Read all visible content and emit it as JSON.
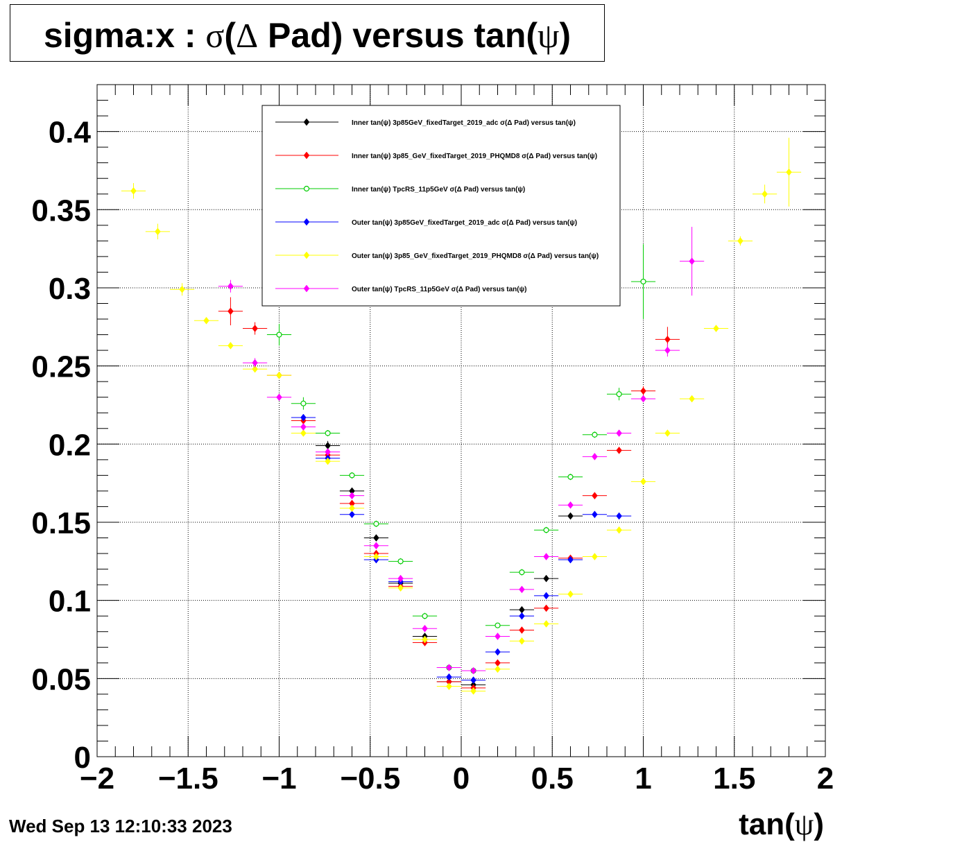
{
  "title": {
    "prefix": "sigma:x : ",
    "sigma": "σ",
    "open": "(",
    "delta": "Δ",
    "mid": " Pad) versus tan(",
    "psi": "ψ",
    "close": ")"
  },
  "datestamp": "Wed Sep 13 12:10:33 2023",
  "chart_data": {
    "type": "scatter",
    "title": "sigma:x : σ(Δ Pad) versus tan(ψ)",
    "xlabel": "tan(ψ)",
    "ylabel": "",
    "xlim": [
      -2,
      2
    ],
    "ylim": [
      0,
      0.43
    ],
    "x_ticks": [
      -2,
      -1.5,
      -1,
      -0.5,
      0,
      0.5,
      1,
      1.5,
      2
    ],
    "x_tick_labels": [
      "−2",
      "−1.5",
      "−1",
      "−0.5",
      "0",
      "0.5",
      "1",
      "1.5",
      "2"
    ],
    "y_ticks": [
      0,
      0.05,
      0.1,
      0.15,
      0.2,
      0.25,
      0.3,
      0.35,
      0.4
    ],
    "y_tick_labels": [
      "0",
      "0.05",
      "0.1",
      "0.15",
      "0.2",
      "0.25",
      "0.3",
      "0.35",
      "0.4"
    ],
    "grid": true,
    "legend_position": "top-center",
    "series": [
      {
        "name": "Inner tan(ψ) 3p85GeV_fixedTarget_2019_adc σ(Δ Pad) versus tan(ψ)",
        "color": "#000000",
        "marker": "filled",
        "xerr": 0.067,
        "x": [
          -0.733,
          -0.6,
          -0.467,
          -0.333,
          -0.2,
          -0.067,
          0.067,
          0.333,
          0.467,
          0.6
        ],
        "y": [
          0.199,
          0.17,
          0.14,
          0.111,
          0.077,
          0.048,
          0.046,
          0.094,
          0.114,
          0.154
        ],
        "yerr": [
          0.003,
          0.002,
          0.002,
          0.002,
          0.002,
          0.001,
          0.001,
          0.002,
          0.002,
          0.002
        ]
      },
      {
        "name": "Inner tan(ψ) 3p85_GeV_fixedTarget_2019_PHQMD8 σ(Δ Pad) versus tan(ψ)",
        "color": "#ff0000",
        "marker": "filled",
        "xerr": 0.067,
        "x": [
          -1.267,
          -1.133,
          -1.0,
          -0.867,
          -0.733,
          -0.6,
          -0.467,
          -0.333,
          -0.2,
          -0.067,
          0.067,
          0.2,
          0.333,
          0.467,
          0.6,
          0.733,
          0.867,
          1.0,
          1.133
        ],
        "y": [
          0.285,
          0.274,
          0.244,
          0.215,
          0.193,
          0.162,
          0.13,
          0.109,
          0.073,
          0.048,
          0.044,
          0.06,
          0.081,
          0.095,
          0.127,
          0.167,
          0.196,
          0.234,
          0.267
        ],
        "yerr": [
          0.009,
          0.004,
          0.002,
          0.002,
          0.002,
          0.002,
          0.002,
          0.002,
          0.002,
          0.001,
          0.001,
          0.001,
          0.001,
          0.002,
          0.002,
          0.002,
          0.002,
          0.003,
          0.008
        ]
      },
      {
        "name": "Inner tan(ψ) TpcRS_11p5GeV σ(Δ Pad) versus tan(ψ)",
        "color": "#00cc00",
        "marker": "open",
        "xerr": 0.067,
        "x": [
          -1.0,
          -0.867,
          -0.733,
          -0.6,
          -0.467,
          -0.333,
          -0.2,
          -0.067,
          0.067,
          0.2,
          0.333,
          0.467,
          0.6,
          0.733,
          0.867,
          1.0
        ],
        "y": [
          0.27,
          0.226,
          0.207,
          0.18,
          0.149,
          0.125,
          0.09,
          0.057,
          0.055,
          0.084,
          0.118,
          0.145,
          0.179,
          0.206,
          0.232,
          0.304
        ],
        "yerr": [
          0.007,
          0.004,
          0.002,
          0.002,
          0.002,
          0.002,
          0.002,
          0.001,
          0.001,
          0.001,
          0.002,
          0.002,
          0.002,
          0.002,
          0.004,
          0.024
        ]
      },
      {
        "name": "Outer tan(ψ) 3p85GeV_fixedTarget_2019_adc σ(Δ Pad) versus tan(ψ)",
        "color": "#0000ff",
        "marker": "filled",
        "xerr": 0.067,
        "x": [
          -0.867,
          -0.733,
          -0.6,
          -0.467,
          -0.333,
          -0.2,
          -0.067,
          0.067,
          0.2,
          0.333,
          0.467,
          0.6,
          0.733,
          0.867
        ],
        "y": [
          0.217,
          0.191,
          0.155,
          0.126,
          0.112,
          0.075,
          0.051,
          0.049,
          0.067,
          0.09,
          0.103,
          0.126,
          0.155,
          0.154
        ],
        "yerr": [
          0.002,
          0.002,
          0.002,
          0.002,
          0.002,
          0.002,
          0.001,
          0.001,
          0.001,
          0.001,
          0.001,
          0.002,
          0.002,
          0.002
        ]
      },
      {
        "name": "Outer tan(ψ) 3p85_GeV_fixedTarget_2019_PHQMD8 σ(Δ Pad) versus tan(ψ)",
        "color": "#ffff00",
        "marker": "filled",
        "xerr": 0.067,
        "x": [
          -1.8,
          -1.667,
          -1.533,
          -1.4,
          -1.267,
          -1.133,
          -1.0,
          -0.867,
          -0.733,
          -0.6,
          -0.467,
          -0.333,
          -0.2,
          -0.067,
          0.067,
          0.2,
          0.333,
          0.467,
          0.6,
          0.733,
          0.867,
          1.0,
          1.133,
          1.267,
          1.4,
          1.533,
          1.667,
          1.8
        ],
        "y": [
          0.362,
          0.336,
          0.299,
          0.279,
          0.263,
          0.248,
          0.244,
          0.207,
          0.189,
          0.159,
          0.128,
          0.108,
          0.075,
          0.045,
          0.042,
          0.056,
          0.074,
          0.085,
          0.104,
          0.128,
          0.145,
          0.176,
          0.207,
          0.229,
          0.274,
          0.33,
          0.36,
          0.374
        ],
        "yerr": [
          0.005,
          0.005,
          0.004,
          0.002,
          0.002,
          0.002,
          0.002,
          0.002,
          0.002,
          0.002,
          0.002,
          0.002,
          0.001,
          0.001,
          0.001,
          0.001,
          0.001,
          0.001,
          0.001,
          0.002,
          0.002,
          0.002,
          0.002,
          0.002,
          0.002,
          0.003,
          0.006,
          0.022
        ]
      },
      {
        "name": "Outer tan(ψ) TpcRS_11p5GeV σ(Δ Pad) versus tan(ψ)",
        "color": "#ff00ff",
        "marker": "filled",
        "xerr": 0.067,
        "x": [
          -1.267,
          -1.133,
          -1.0,
          -0.867,
          -0.733,
          -0.6,
          -0.467,
          -0.333,
          -0.2,
          -0.067,
          0.067,
          0.2,
          0.333,
          0.467,
          0.6,
          0.733,
          0.867,
          1.0,
          1.133,
          1.267
        ],
        "y": [
          0.301,
          0.252,
          0.23,
          0.211,
          0.195,
          0.167,
          0.135,
          0.114,
          0.082,
          0.057,
          0.055,
          0.077,
          0.107,
          0.128,
          0.161,
          0.192,
          0.207,
          0.229,
          0.26,
          0.317
        ],
        "yerr": [
          0.004,
          0.003,
          0.002,
          0.002,
          0.002,
          0.002,
          0.002,
          0.002,
          0.001,
          0.001,
          0.001,
          0.001,
          0.001,
          0.002,
          0.002,
          0.002,
          0.002,
          0.002,
          0.004,
          0.022
        ]
      }
    ]
  }
}
